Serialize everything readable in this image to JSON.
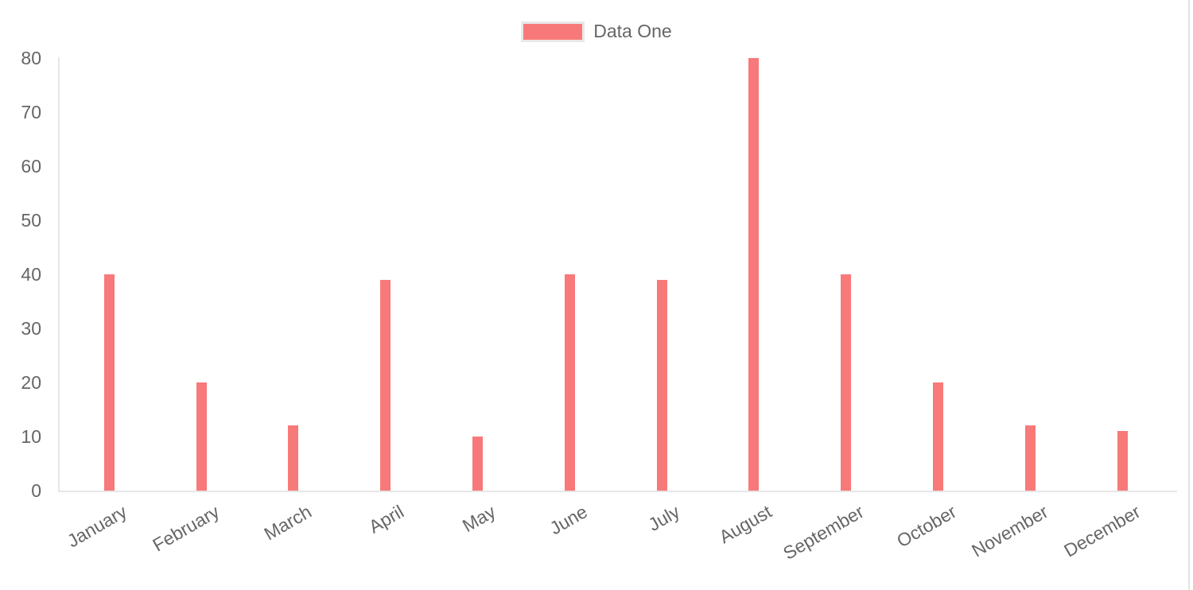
{
  "chart_data": {
    "type": "bar",
    "title": "",
    "categories": [
      "January",
      "February",
      "March",
      "April",
      "May",
      "June",
      "July",
      "August",
      "September",
      "October",
      "November",
      "December"
    ],
    "series": [
      {
        "name": "Data One",
        "values": [
          40,
          20,
          12,
          39,
          10,
          40,
          39,
          80,
          40,
          20,
          12,
          11
        ],
        "color": "#f87979"
      }
    ],
    "xlabel": "",
    "ylabel": "",
    "ylim": [
      0,
      80
    ],
    "yticks": [
      0,
      10,
      20,
      30,
      40,
      50,
      60,
      70,
      80
    ],
    "legend_position": "top-center",
    "grid": false,
    "x_label_rotation_deg": -30,
    "colors": {
      "bar": "#f87979",
      "legend_swatch_border": "#e9e9e9",
      "axis_line": "#e6e6e6",
      "tick_text": "#666666",
      "background": "#ffffff",
      "right_edge_line": "#e3e3e3"
    }
  }
}
